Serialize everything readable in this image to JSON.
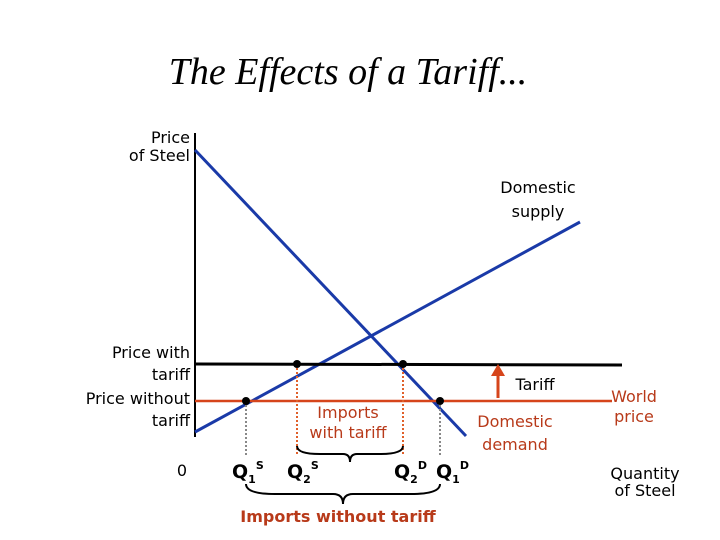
{
  "title": "The Effects of a Tariff...",
  "y_axis_label": [
    "Price",
    "of Steel"
  ],
  "x_axis_label": [
    "Quantity",
    "of Steel"
  ],
  "supply_label": [
    "Domestic",
    "supply"
  ],
  "demand_label": [
    "Domestic",
    "demand"
  ],
  "price_with_tariff": [
    "Price with",
    "tariff"
  ],
  "price_without_tariff": [
    "Price without",
    "tariff"
  ],
  "world_price": [
    "World",
    "price"
  ],
  "tariff": "Tariff",
  "origin": "0",
  "imports_with_tariff": [
    "Imports",
    "with tariff"
  ],
  "imports_without_tariff": "Imports without tariff",
  "quantities": [
    {
      "base": "Q",
      "sub": "1",
      "sup": "S"
    },
    {
      "base": "Q",
      "sub": "2",
      "sup": "S"
    },
    {
      "base": "Q",
      "sub": "2",
      "sup": "D"
    },
    {
      "base": "Q",
      "sub": "1",
      "sup": "D"
    }
  ]
}
